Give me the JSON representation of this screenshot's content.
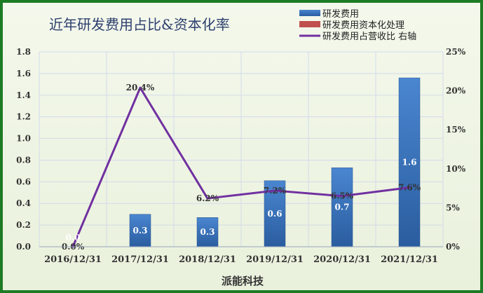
{
  "chart_data": {
    "type": "bar",
    "title": "近年研发费用占比&资本化率",
    "xlabel": "派能科技",
    "categories": [
      "2016/12/31",
      "2017/12/31",
      "2018/12/31",
      "2019/12/31",
      "2020/12/31",
      "2021/12/31"
    ],
    "ylim": [
      0,
      1.8
    ],
    "yticks": [
      "0.0",
      "0.2",
      "0.4",
      "0.6",
      "0.8",
      "1.0",
      "1.2",
      "1.4",
      "1.6",
      "1.8"
    ],
    "y2lim": [
      0,
      25
    ],
    "y2ticks": [
      "0%",
      "5%",
      "10%",
      "15%",
      "20%",
      "25%"
    ],
    "grid": true,
    "legend_position": "top-right",
    "series": [
      {
        "name": "研发费用",
        "type": "bar",
        "axis": "left",
        "color": "#3b74c0",
        "values": [
          0.0,
          0.3,
          0.27,
          0.61,
          0.73,
          1.56
        ],
        "labels": [
          "0.0",
          "0.3",
          "0.3",
          "0.6",
          "0.7",
          "1.6"
        ]
      },
      {
        "name": "研发费用资本化处理",
        "type": "bar",
        "axis": "left",
        "color": "#c0504d",
        "values": [
          0,
          0,
          0,
          0,
          0,
          0
        ]
      },
      {
        "name": "研发费用占营收比 右轴",
        "type": "line",
        "axis": "right",
        "color": "#7030a0",
        "values": [
          0.0,
          20.4,
          6.2,
          7.2,
          6.5,
          7.6
        ],
        "labels": [
          "0.0%",
          "20.4%",
          "6.2%",
          "7.2%",
          "6.5%",
          "7.6%"
        ]
      }
    ]
  }
}
